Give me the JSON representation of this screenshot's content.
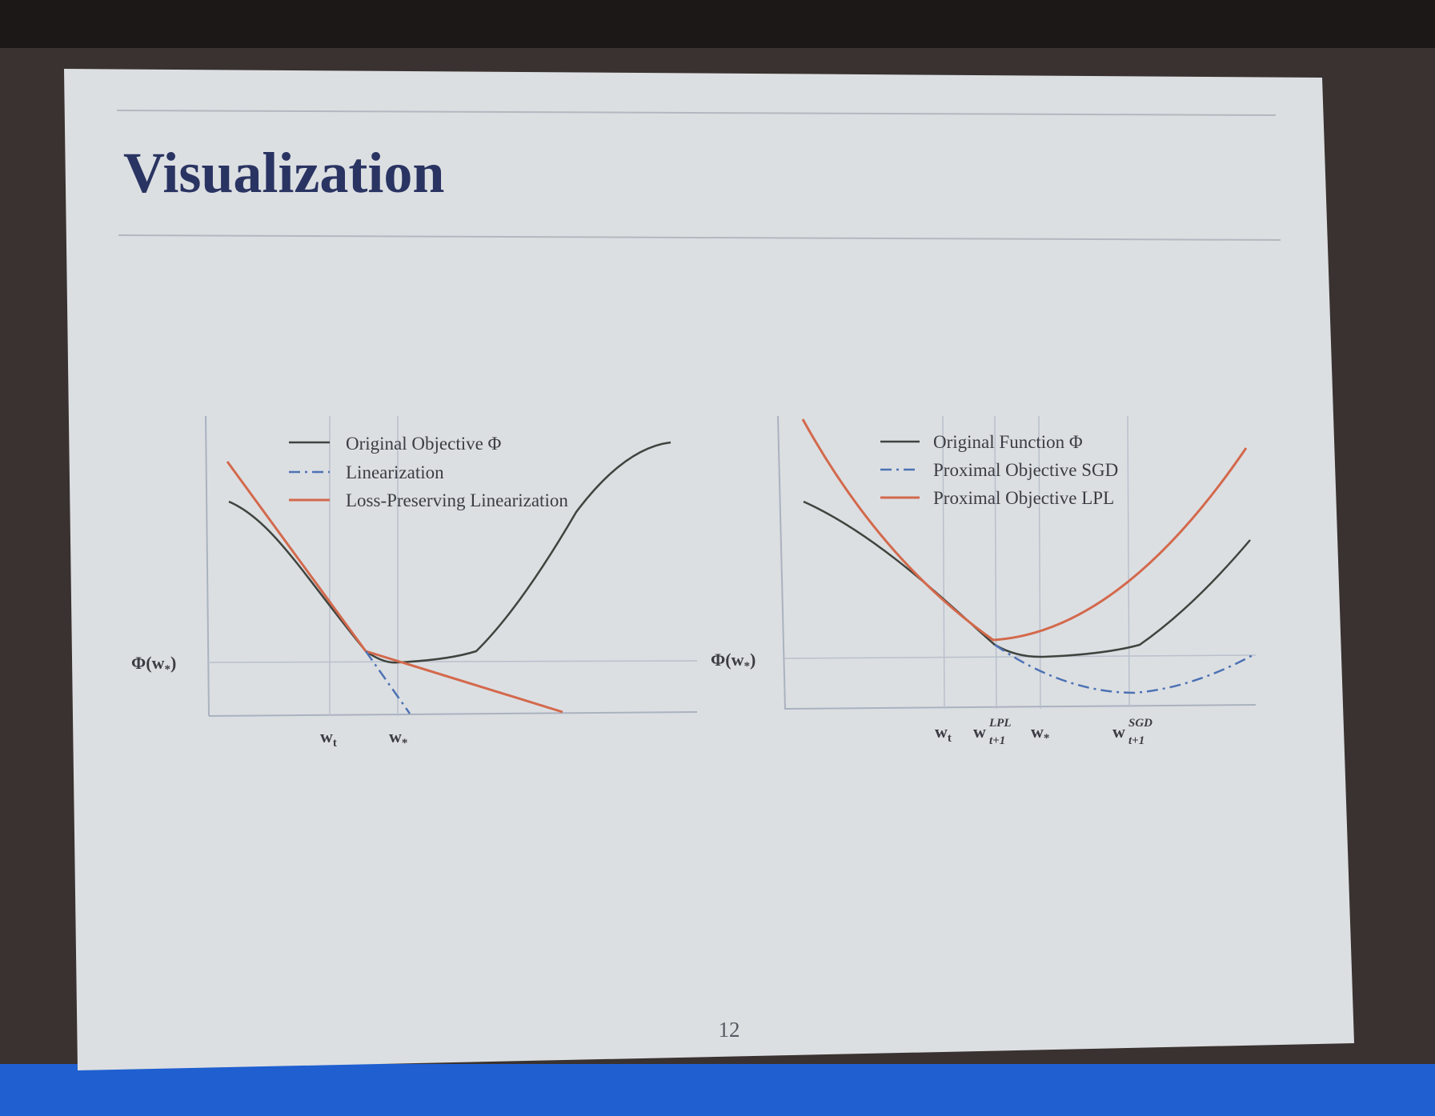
{
  "slide": {
    "title": "Visualization",
    "page_number": "12"
  },
  "figures": [
    {
      "legend": [
        "Original Objective Φ",
        "Linearization",
        "Loss-Preserving Linearization"
      ],
      "y_label": {
        "base": "Φ(w",
        "sub": "*",
        "after": ")"
      },
      "x_labels": [
        {
          "base": "w",
          "sub": "t"
        },
        {
          "base": "w",
          "sub": "*"
        }
      ]
    },
    {
      "legend": [
        "Original Function Φ",
        "Proximal Objective SGD",
        "Proximal Objective LPL"
      ],
      "y_label": {
        "base": "Φ(w",
        "sub": "*",
        "after": ")"
      },
      "x_labels": [
        {
          "base": "w",
          "sub": "t"
        },
        {
          "base": "w",
          "sub": "t+1",
          "sup": "LPL"
        },
        {
          "base": "w",
          "sub": "*"
        },
        {
          "base": "w",
          "sub": "t+1",
          "sup": "SGD"
        }
      ]
    }
  ]
}
